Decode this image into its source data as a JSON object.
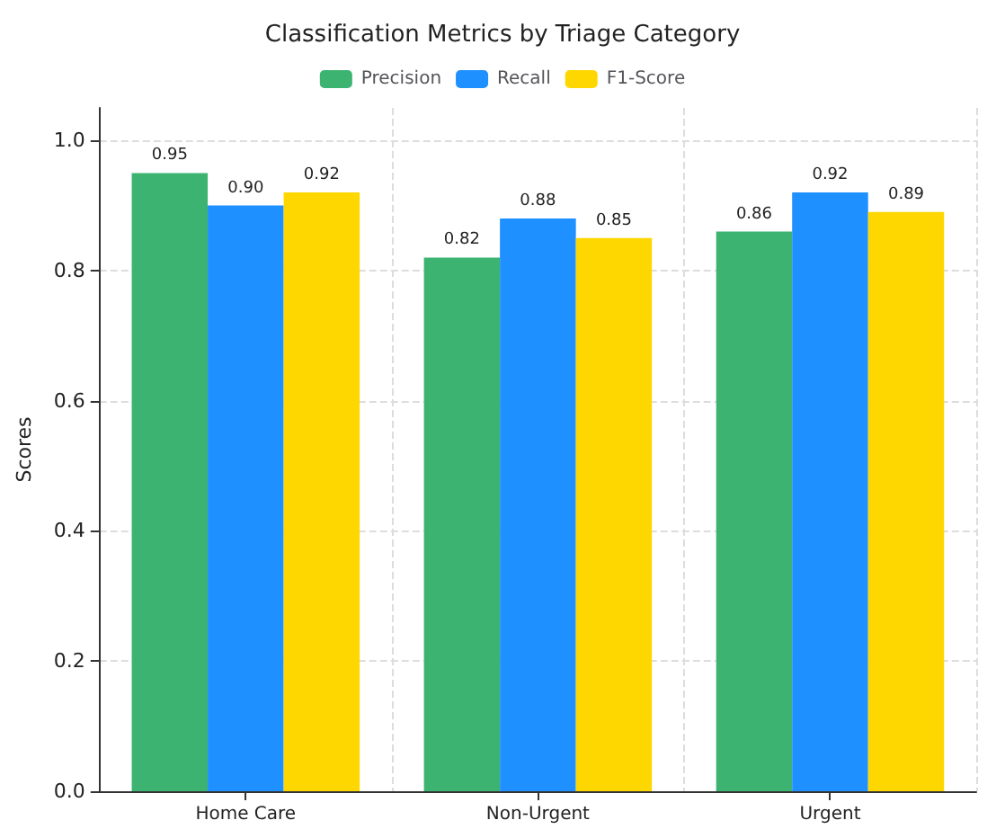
{
  "chart_data": {
    "type": "bar",
    "title": "Classification Metrics by Triage Category",
    "ylabel": "Scores",
    "categories": [
      "Home Care",
      "Non-Urgent",
      "Urgent"
    ],
    "series": [
      {
        "name": "Precision",
        "color": "#3cb371",
        "values": [
          0.95,
          0.82,
          0.86
        ],
        "value_labels": [
          "0.95",
          "0.82",
          "0.86"
        ]
      },
      {
        "name": "Recall",
        "color": "#1e90ff",
        "values": [
          0.9,
          0.88,
          0.92
        ],
        "value_labels": [
          "0.90",
          "0.88",
          "0.92"
        ]
      },
      {
        "name": "F1-Score",
        "color": "#ffd700",
        "values": [
          0.92,
          0.85,
          0.89
        ],
        "value_labels": [
          "0.92",
          "0.85",
          "0.89"
        ]
      }
    ],
    "ylim": [
      0,
      1.05
    ],
    "yticks": [
      {
        "value": 0,
        "label": "0.0"
      },
      0.2,
      0.4,
      0.6,
      0.8,
      {
        "value": 1,
        "label": "1.0"
      }
    ],
    "grid": true,
    "legend": "top"
  }
}
